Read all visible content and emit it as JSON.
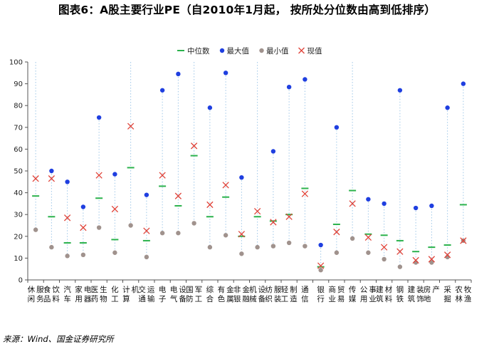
{
  "chart_data": {
    "type": "scatter",
    "title": "图表6：A股主要行业PE（自2010年1月起， 按所处分位数由高到低排序）",
    "ylim": [
      0,
      100
    ],
    "y_ticks": [
      0,
      10,
      20,
      30,
      40,
      50,
      60,
      70,
      80,
      90,
      100
    ],
    "legend_position": "top-right",
    "categories": [
      "休闲服务",
      "食品饮料",
      "汽车",
      "家用电器",
      "医药生物",
      "化工",
      "计算机",
      "交通运输",
      "电子",
      "电气设备",
      "国防军工",
      "综合",
      "有色金属",
      "非银金融",
      "机械设备",
      "纺织服装",
      "轻工制造",
      "通信",
      "银行",
      "商业贸易",
      "传媒",
      "公用事业",
      "建筑材料",
      "钢铁",
      "建筑装饰",
      "房地产",
      "采掘",
      "农林牧渔"
    ],
    "series": [
      {
        "name": "中位数",
        "marker": "dash",
        "color": "#2bb24c",
        "values": [
          38.5,
          29,
          17,
          17,
          37.5,
          18.5,
          51.5,
          18,
          43,
          34,
          57,
          29,
          38,
          20,
          29,
          27,
          30,
          42,
          6,
          25.5,
          41,
          21,
          20.5,
          18,
          13,
          15,
          16,
          34.5
        ]
      },
      {
        "name": "最大值",
        "marker": "dot",
        "color": "#1f3fe0",
        "values": [
          null,
          50,
          45,
          33.5,
          74.5,
          48.5,
          null,
          39,
          87,
          94.5,
          null,
          79,
          95,
          47,
          null,
          59,
          88.5,
          92,
          16,
          70,
          null,
          37,
          35,
          87,
          33,
          34,
          79,
          90
        ]
      },
      {
        "name": "最小值",
        "marker": "dot",
        "color": "#a0928d",
        "values": [
          23,
          15,
          11,
          11.5,
          24,
          12.5,
          25,
          10.5,
          21.5,
          21.5,
          26,
          15,
          20.5,
          12,
          15,
          15.5,
          17,
          15.5,
          4.5,
          12.5,
          19,
          12.5,
          9.5,
          6,
          8,
          8,
          10.5,
          18
        ]
      },
      {
        "name": "现值",
        "marker": "x",
        "color": "#e0443a",
        "values": [
          46.5,
          46.5,
          28.5,
          24,
          48,
          32.5,
          70.5,
          22.5,
          48,
          38.5,
          61.5,
          34.5,
          43.5,
          21,
          31.5,
          26.5,
          29,
          39.5,
          6.5,
          22,
          35,
          19.5,
          15,
          13,
          9,
          9.5,
          11.5,
          18
        ]
      }
    ]
  },
  "source_note": "来源：Wind、国金证券研究所"
}
